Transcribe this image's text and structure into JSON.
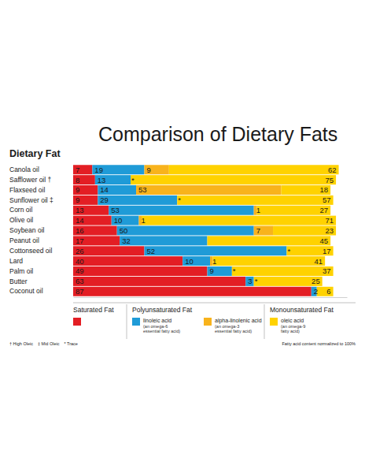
{
  "chart_data": {
    "type": "bar",
    "orientation": "horizontal",
    "stacked": true,
    "data_labels": true,
    "tick_labels": false,
    "title": "Comparison of Dietary Fats",
    "y_label": "Dietary Fat",
    "categories": [
      "Canola oil",
      "Safflower oil †",
      "Flaxseed oil",
      "Sunflower oil ‡",
      "Corn oil",
      "Olive oil",
      "Soybean oil",
      "Peanut oil",
      "Cottonseed oil",
      "Lard",
      "Palm oil",
      "Butter",
      "Coconut oil"
    ],
    "xlim": [
      0,
      100
    ],
    "series": [
      {
        "name": "Saturated Fat",
        "color": "#e31e24",
        "values": [
          7,
          8,
          9,
          9,
          13,
          14,
          16,
          17,
          26,
          40,
          49,
          63,
          87
        ]
      },
      {
        "name": "linoleic acid",
        "group": "Polyunsaturated Fat",
        "note": "(an omega-6 essential fatty acid)",
        "color": "#1f9bd7",
        "values": [
          19,
          13,
          14,
          29,
          53,
          10,
          50,
          32,
          52,
          10,
          9,
          3,
          2
        ]
      },
      {
        "name": "alpha-linolenic acid",
        "group": "Polyunsaturated Fat",
        "note": "(an omega-3 essential fatty acid)",
        "color": "#f8b31c",
        "values": [
          9,
          0,
          53,
          0,
          1,
          1,
          7,
          null,
          0,
          1,
          0,
          0,
          null
        ],
        "value_labels": [
          "9",
          "*",
          "53",
          "*",
          "1",
          "1",
          "7",
          null,
          "*",
          "1",
          "*",
          "*",
          null
        ]
      },
      {
        "name": "oleic acid",
        "group": "Monounsaturated Fat",
        "note": "(an omega-9 fatty acid)",
        "color": "#ffd200",
        "values": [
          62,
          75,
          18,
          57,
          27,
          71,
          23,
          45,
          17,
          41,
          37,
          25,
          6
        ]
      }
    ],
    "footnotes": [
      "† High Oleic",
      "‡ Mid Oleic",
      "* Trace"
    ],
    "note": "Fatty acid content normalized to 100%"
  }
}
